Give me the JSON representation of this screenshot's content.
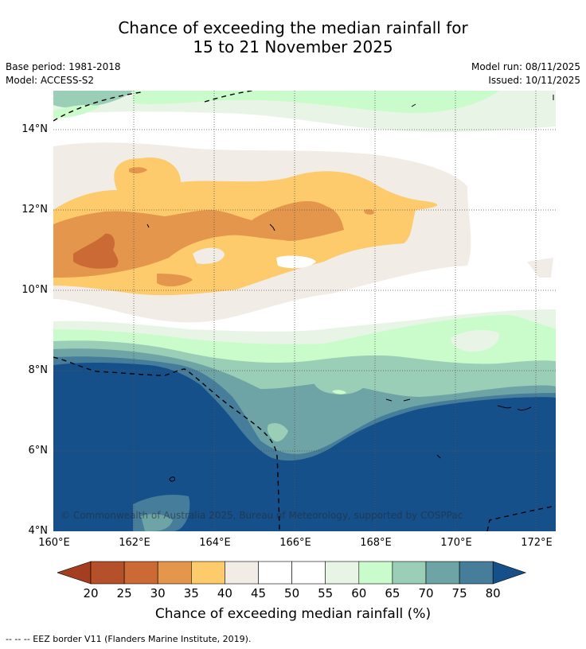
{
  "title": {
    "line1": "Chance of exceeding the median rainfall for",
    "line2": "15 to 21 November 2025"
  },
  "meta": {
    "base_period": "Base period: 1981-2018",
    "model": "Model: ACCESS-S2",
    "model_run": "Model run: 08/11/2025",
    "issued": "Issued: 10/11/2025"
  },
  "axes": {
    "y_ticks": [
      "14°N",
      "12°N",
      "10°N",
      "8°N",
      "6°N",
      "4°N"
    ],
    "x_ticks": [
      "160°E",
      "162°E",
      "164°E",
      "166°E",
      "168°E",
      "170°E",
      "172°E"
    ]
  },
  "colorbar": {
    "labels": [
      "20",
      "25",
      "30",
      "35",
      "40",
      "45",
      "50",
      "55",
      "60",
      "65",
      "70",
      "75",
      "80"
    ],
    "colors": [
      "#a33f20",
      "#b4502a",
      "#cb6a35",
      "#e3964c",
      "#fdcb6b",
      "#f2ece6",
      "#ffffff",
      "#ffffff",
      "#e8f5e6",
      "#cafccb",
      "#9bceb6",
      "#6ea4a6",
      "#457d9b",
      "#15508b"
    ],
    "title": "Chance of exceeding median rainfall (%)"
  },
  "copyright": "© Commonwealth of Australia 2025, Bureau of Meteorology, supported by COSPPac",
  "footnote": "--  --  -- EEZ border V11 (Flanders Marine Institute, 2019)."
}
